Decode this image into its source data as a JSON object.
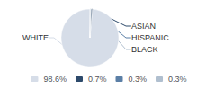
{
  "chart_data": {
    "type": "pie",
    "categories": [
      "WHITE",
      "ASIAN",
      "HISPANIC",
      "BLACK"
    ],
    "values": [
      98.6,
      0.7,
      0.3,
      0.3
    ],
    "value_labels": [
      "98.6%",
      "0.7%",
      "0.3%",
      "0.3%"
    ],
    "colors": [
      "#d6dde8",
      "#2d4a6b",
      "#5b7fa6",
      "#b0bfcf"
    ],
    "legend": "bottom"
  }
}
